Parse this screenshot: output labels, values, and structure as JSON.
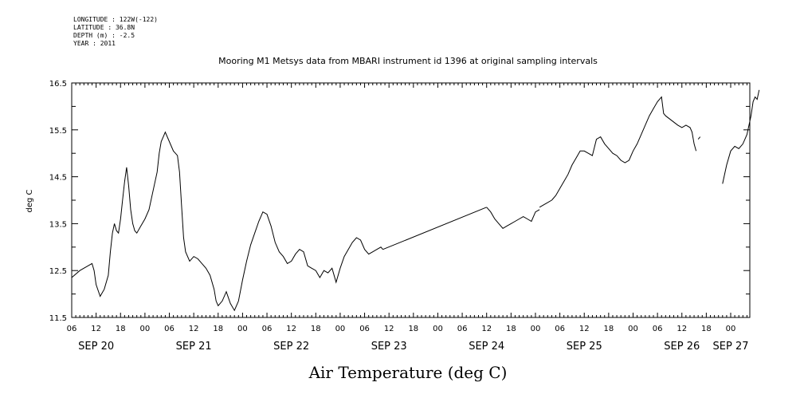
{
  "meta": {
    "longitude": "LONGITUDE : 122W(-122)",
    "latitude": "LATITUDE : 36.8N",
    "depth": "DEPTH (m) : -2.5",
    "year": "YEAR : 2011"
  },
  "chart_data": {
    "type": "line",
    "title": "Mooring M1 Metsys data from MBARI instrument id 1396 at original sampling intervals",
    "xlabel": "Air Temperature (deg C)",
    "ylabel": "deg C",
    "ylim": [
      11.5,
      16.5
    ],
    "yticks": [
      "11.5",
      "12.5",
      "13.5",
      "14.5",
      "15.5",
      "16.5"
    ],
    "x_unit": "hours since Sep 20 00:00",
    "xlim": [
      6,
      170
    ],
    "hour_tick_labels": [
      "06",
      "12",
      "18",
      "00",
      "06",
      "12",
      "18",
      "00",
      "06",
      "12",
      "18",
      "00",
      "06",
      "12",
      "18",
      "00",
      "06",
      "12",
      "18",
      "00",
      "06",
      "12",
      "18",
      "00",
      "06",
      "12",
      "18",
      "00"
    ],
    "day_labels": [
      {
        "label": "SEP 20",
        "hour": 12
      },
      {
        "label": "SEP 21",
        "hour": 36
      },
      {
        "label": "SEP 22",
        "hour": 60
      },
      {
        "label": "SEP 23",
        "hour": 84
      },
      {
        "label": "SEP 24",
        "hour": 108
      },
      {
        "label": "SEP 25",
        "hour": 132
      },
      {
        "label": "SEP 26",
        "hour": 156
      },
      {
        "label": "SEP 27",
        "hour": 168
      }
    ],
    "grid": false,
    "series": [
      {
        "segments": [
          [
            [
              6,
              12.35
            ],
            [
              8,
              12.5
            ],
            [
              10,
              12.6
            ],
            [
              11,
              12.65
            ],
            [
              11.5,
              12.5
            ],
            [
              12,
              12.2
            ],
            [
              13,
              11.95
            ],
            [
              14,
              12.1
            ],
            [
              15,
              12.4
            ],
            [
              15.5,
              12.9
            ],
            [
              16,
              13.3
            ],
            [
              16.5,
              13.5
            ],
            [
              17,
              13.35
            ],
            [
              17.5,
              13.3
            ],
            [
              18,
              13.6
            ],
            [
              18.5,
              14.0
            ],
            [
              19,
              14.4
            ],
            [
              19.5,
              14.7
            ],
            [
              20,
              14.3
            ],
            [
              20.5,
              13.8
            ],
            [
              21,
              13.5
            ],
            [
              21.5,
              13.35
            ],
            [
              22,
              13.3
            ],
            [
              23,
              13.45
            ],
            [
              24,
              13.6
            ],
            [
              25,
              13.8
            ],
            [
              26,
              14.2
            ],
            [
              27,
              14.6
            ],
            [
              27.5,
              15.0
            ],
            [
              28,
              15.25
            ],
            [
              28.5,
              15.35
            ],
            [
              29,
              15.45
            ],
            [
              30,
              15.25
            ],
            [
              31,
              15.05
            ],
            [
              31.5,
              15.0
            ],
            [
              32,
              14.95
            ],
            [
              32.5,
              14.6
            ],
            [
              33,
              13.9
            ],
            [
              33.5,
              13.2
            ],
            [
              34,
              12.9
            ],
            [
              35,
              12.7
            ],
            [
              36,
              12.8
            ],
            [
              37,
              12.75
            ],
            [
              38,
              12.65
            ],
            [
              39,
              12.55
            ],
            [
              40,
              12.4
            ],
            [
              41,
              12.1
            ],
            [
              41.5,
              11.85
            ],
            [
              42,
              11.75
            ],
            [
              43,
              11.85
            ],
            [
              44,
              12.05
            ],
            [
              45,
              11.8
            ],
            [
              46,
              11.65
            ],
            [
              47,
              11.85
            ],
            [
              48,
              12.3
            ],
            [
              49,
              12.7
            ],
            [
              50,
              13.05
            ],
            [
              51,
              13.3
            ],
            [
              52,
              13.55
            ],
            [
              53,
              13.75
            ],
            [
              54,
              13.7
            ],
            [
              55,
              13.45
            ],
            [
              56,
              13.1
            ],
            [
              57,
              12.9
            ],
            [
              58,
              12.8
            ],
            [
              59,
              12.65
            ],
            [
              60,
              12.7
            ],
            [
              61,
              12.85
            ],
            [
              62,
              12.95
            ],
            [
              63,
              12.9
            ],
            [
              64,
              12.6
            ],
            [
              65,
              12.55
            ],
            [
              66,
              12.5
            ],
            [
              67,
              12.35
            ],
            [
              68,
              12.5
            ],
            [
              69,
              12.45
            ],
            [
              70,
              12.55
            ],
            [
              71,
              12.25
            ],
            [
              72,
              12.55
            ],
            [
              73,
              12.8
            ],
            [
              74,
              12.95
            ],
            [
              75,
              13.1
            ],
            [
              76,
              13.2
            ],
            [
              77,
              13.15
            ],
            [
              78,
              12.95
            ],
            [
              79,
              12.85
            ],
            [
              80,
              12.9
            ],
            [
              81,
              12.95
            ],
            [
              82,
              13.0
            ],
            [
              82.5,
              12.95
            ]
          ],
          [
            [
              82.5,
              12.95
            ],
            [
              108,
              13.85
            ]
          ],
          [
            [
              108,
              13.85
            ],
            [
              109,
              13.75
            ],
            [
              110,
              13.6
            ],
            [
              111,
              13.5
            ],
            [
              112,
              13.4
            ],
            [
              113,
              13.45
            ],
            [
              114,
              13.5
            ],
            [
              115,
              13.55
            ],
            [
              116,
              13.6
            ],
            [
              117,
              13.65
            ],
            [
              118,
              13.6
            ],
            [
              119,
              13.55
            ],
            [
              120,
              13.75
            ],
            [
              121,
              13.8
            ]
          ],
          [
            [
              121,
              13.85
            ],
            [
              124,
              14.0
            ]
          ],
          [
            [
              124,
              14.0
            ],
            [
              125,
              14.1
            ],
            [
              126,
              14.25
            ],
            [
              127,
              14.4
            ],
            [
              128,
              14.55
            ],
            [
              129,
              14.75
            ],
            [
              130,
              14.9
            ],
            [
              131,
              15.05
            ],
            [
              132,
              15.05
            ],
            [
              133,
              15.0
            ],
            [
              134,
              14.95
            ],
            [
              135,
              15.3
            ],
            [
              136,
              15.35
            ],
            [
              137,
              15.2
            ],
            [
              138,
              15.1
            ],
            [
              139,
              15.0
            ],
            [
              140,
              14.95
            ],
            [
              141,
              14.85
            ],
            [
              142,
              14.8
            ],
            [
              143,
              14.85
            ],
            [
              144,
              15.05
            ],
            [
              145,
              15.2
            ],
            [
              146,
              15.4
            ],
            [
              147,
              15.6
            ],
            [
              148,
              15.8
            ],
            [
              149,
              15.95
            ],
            [
              150,
              16.1
            ],
            [
              151,
              16.2
            ],
            [
              151.5,
              15.85
            ],
            [
              152,
              15.8
            ],
            [
              155,
              15.6
            ],
            [
              156,
              15.55
            ],
            [
              157,
              15.6
            ],
            [
              158,
              15.55
            ],
            [
              158.5,
              15.45
            ],
            [
              159,
              15.2
            ],
            [
              159.5,
              15.05
            ]
          ],
          [
            [
              160,
              15.3
            ],
            [
              160.5,
              15.35
            ]
          ],
          [
            [
              166,
              14.35
            ],
            [
              167,
              14.75
            ],
            [
              168,
              15.05
            ],
            [
              169,
              15.15
            ],
            [
              170,
              15.1
            ],
            [
              171,
              15.2
            ],
            [
              172,
              15.4
            ],
            [
              173,
              15.8
            ],
            [
              173.5,
              16.1
            ],
            [
              174,
              16.2
            ],
            [
              174.5,
              16.15
            ],
            [
              175,
              16.35
            ]
          ]
        ]
      }
    ]
  }
}
